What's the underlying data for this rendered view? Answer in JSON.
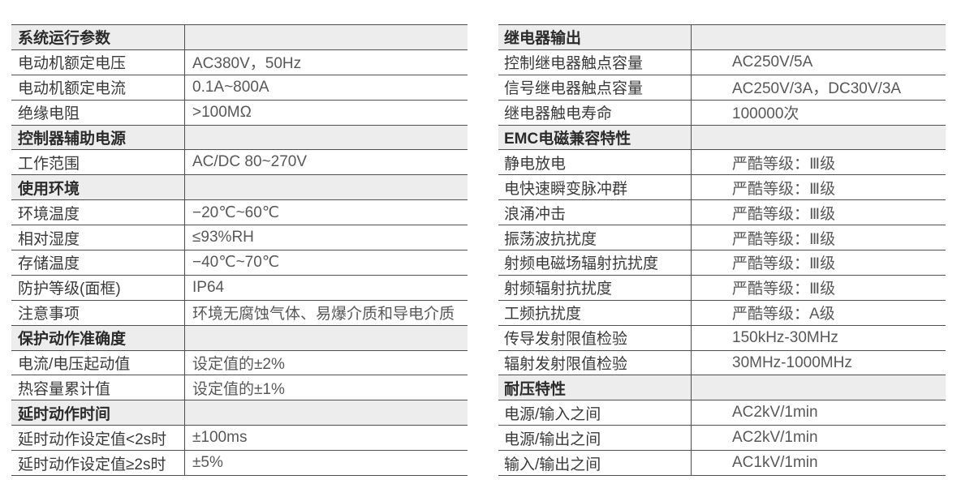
{
  "colors": {
    "line": "#4e4e4e",
    "header_bg": "#ededed",
    "label_text": "#3a3a3a",
    "value_text": "#585858"
  },
  "tables": [
    {
      "id": "left",
      "rows": [
        {
          "type": "section",
          "label": "系统运行参数",
          "value": ""
        },
        {
          "type": "data",
          "label": "电动机额定电压",
          "value": "AC380V，50Hz"
        },
        {
          "type": "data",
          "label": "电动机额定电流",
          "value": "0.1A~800A"
        },
        {
          "type": "data",
          "label": "绝缘电阻",
          "value": ">100MΩ"
        },
        {
          "type": "section",
          "label": "控制器辅助电源",
          "value": ""
        },
        {
          "type": "data",
          "label": "工作范围",
          "value": "AC/DC 80~270V"
        },
        {
          "type": "section",
          "label": "使用环境",
          "value": ""
        },
        {
          "type": "data",
          "label": "环境温度",
          "value": "−20℃~60℃"
        },
        {
          "type": "data",
          "label": "相对湿度",
          "value": "≤93%RH"
        },
        {
          "type": "data",
          "label": "存储温度",
          "value": "−40℃~70℃"
        },
        {
          "type": "data",
          "label": "防护等级(面框)",
          "value": "IP64"
        },
        {
          "type": "data",
          "label": "注意事项",
          "value": "环境无腐蚀气体、易爆介质和导电介质"
        },
        {
          "type": "section",
          "label": "保护动作准确度",
          "value": ""
        },
        {
          "type": "data",
          "label": "电流/电压起动值",
          "value": "设定值的±2%"
        },
        {
          "type": "data",
          "label": "热容量累计值",
          "value": "设定值的±1%"
        },
        {
          "type": "section",
          "label": "延时动作时间",
          "value": ""
        },
        {
          "type": "data",
          "label": "延时动作设定值<2s时",
          "value": "±100ms"
        },
        {
          "type": "data",
          "label": "延时动作设定值≥2s时",
          "value": "±5%"
        }
      ]
    },
    {
      "id": "right",
      "rows": [
        {
          "type": "section",
          "label": "继电器输出",
          "value": ""
        },
        {
          "type": "data",
          "label": "控制继电器触点容量",
          "value": "AC250V/5A"
        },
        {
          "type": "data",
          "label": "信号继电器触点容量",
          "value": "AC250V/3A，DC30V/3A"
        },
        {
          "type": "data",
          "label": "继电器触电寿命",
          "value": "100000次"
        },
        {
          "type": "section",
          "label": "EMC电磁兼容特性",
          "value": ""
        },
        {
          "type": "data",
          "label": "静电放电",
          "value": "严酷等级：Ⅲ级"
        },
        {
          "type": "data",
          "label": "电快速瞬变脉冲群",
          "value": "严酷等级：Ⅲ级"
        },
        {
          "type": "data",
          "label": "浪涌冲击",
          "value": "严酷等级：Ⅲ级"
        },
        {
          "type": "data",
          "label": "振荡波抗扰度",
          "value": "严酷等级：Ⅲ级"
        },
        {
          "type": "data",
          "label": "射频电磁场辐射抗扰度",
          "value": "严酷等级：Ⅲ级"
        },
        {
          "type": "data",
          "label": "射频辐射抗扰度",
          "value": "严酷等级：Ⅲ级"
        },
        {
          "type": "data",
          "label": "工频抗扰度",
          "value": "严酷等级：A级"
        },
        {
          "type": "data",
          "label": "传导发射限值检验",
          "value": "150kHz-30MHz"
        },
        {
          "type": "data",
          "label": "辐射发射限值检验",
          "value": "30MHz-1000MHz"
        },
        {
          "type": "section",
          "label": "耐压特性",
          "value": ""
        },
        {
          "type": "data",
          "label": "电源/输入之间",
          "value": "AC2kV/1min"
        },
        {
          "type": "data",
          "label": "电源/输出之间",
          "value": "AC2kV/1min"
        },
        {
          "type": "data",
          "label": "输入/输出之间",
          "value": "AC1kV/1min"
        }
      ]
    }
  ]
}
